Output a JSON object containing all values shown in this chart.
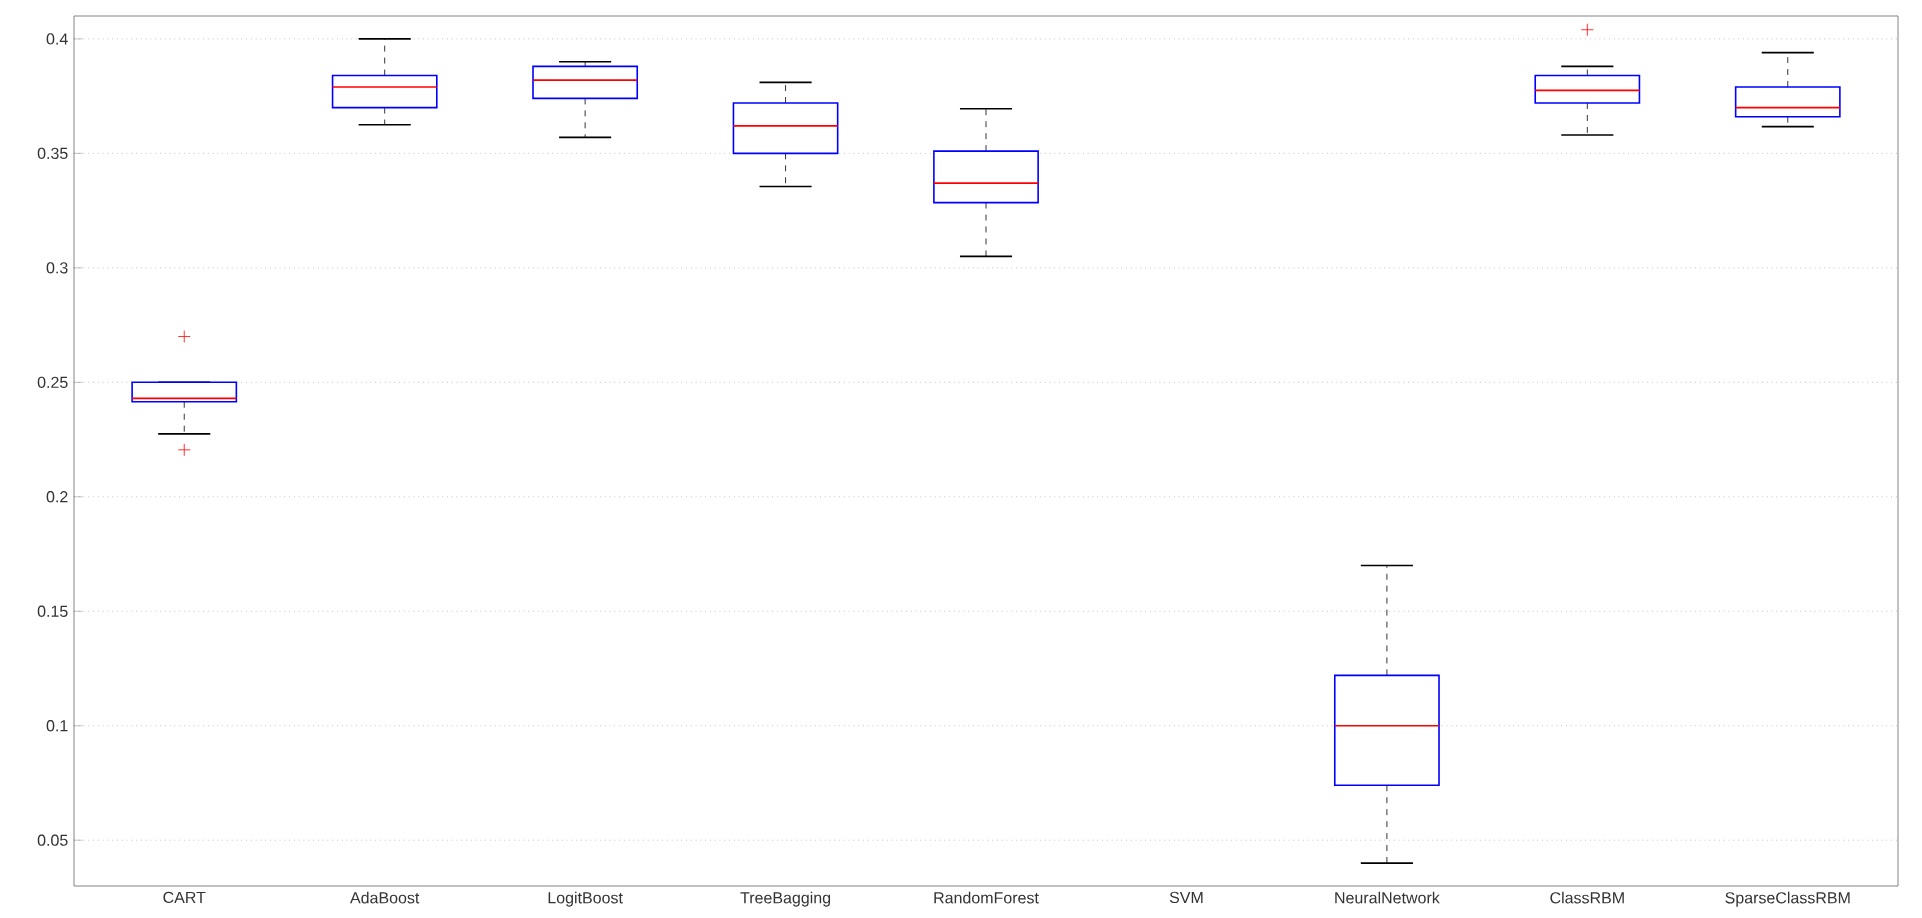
{
  "chart_data": {
    "type": "box",
    "categories": [
      "CART",
      "AdaBoost",
      "LogitBoost",
      "TreeBagging",
      "RandomForest",
      "SVM",
      "NeuralNetwork",
      "ClassRBM",
      "SparseClassRBM"
    ],
    "color": "#0000ff",
    "boxes": [
      {
        "low": 0.2275,
        "q1": 0.2415,
        "median": 0.243,
        "q3": 0.25,
        "high": 0.25,
        "outliers": [
          0.27,
          0.2205
        ]
      },
      {
        "low": 0.3625,
        "q1": 0.37,
        "median": 0.379,
        "q3": 0.384,
        "high": 0.4
      },
      {
        "low": 0.357,
        "q1": 0.374,
        "median": 0.382,
        "q3": 0.388,
        "high": 0.39
      },
      {
        "low": 0.3355,
        "q1": 0.35,
        "median": 0.362,
        "q3": 0.372,
        "high": 0.381
      },
      {
        "low": 0.305,
        "q1": 0.3285,
        "median": 0.337,
        "q3": 0.351,
        "high": 0.3695
      },
      null,
      {
        "low": 0.04,
        "q1": 0.074,
        "median": 0.1,
        "q3": 0.122,
        "high": 0.17
      },
      {
        "low": 0.358,
        "q1": 0.372,
        "median": 0.3775,
        "q3": 0.384,
        "high": 0.388,
        "outliers": [
          0.404
        ]
      },
      {
        "low": 0.3617,
        "q1": 0.366,
        "median": 0.37,
        "q3": 0.379,
        "high": 0.394
      }
    ],
    "ylim": [
      0.03,
      0.41
    ],
    "yticks": [
      0.05,
      0.1,
      0.15,
      0.2,
      0.25,
      0.3,
      0.35,
      0.4
    ],
    "grid": "y"
  }
}
